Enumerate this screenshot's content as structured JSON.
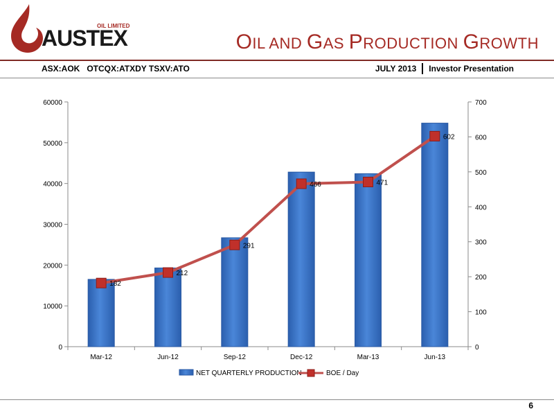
{
  "header": {
    "logo": {
      "company": "AUSTEX",
      "sub": "OIL LIMITED"
    },
    "title_parts": [
      {
        "text": "O",
        "cls": "cap"
      },
      {
        "text": "IL AND ",
        "cls": "sc"
      },
      {
        "text": "G",
        "cls": "cap"
      },
      {
        "text": "AS ",
        "cls": "sc"
      },
      {
        "text": "P",
        "cls": "cap"
      },
      {
        "text": "RODUCTION ",
        "cls": "sc"
      },
      {
        "text": "G",
        "cls": "cap"
      },
      {
        "text": "ROWTH",
        "cls": "sc"
      }
    ],
    "tickers": "ASX:AOK   OTCQX:ATXDY TSXV:ATO",
    "date": "JULY 2013",
    "presentation": "Investor Presentation"
  },
  "colors": {
    "title": "#a52a24",
    "bar": "#3f79cf",
    "bar_edge": "#2a5aa4",
    "line": "#c0504d",
    "marker": "#c0302a"
  },
  "chart_data": {
    "type": "bar",
    "categories": [
      "Mar-12",
      "Jun-12",
      "Sep-12",
      "Dec-12",
      "Mar-13",
      "Jun-13"
    ],
    "series": [
      {
        "name": "NET QUARTERLY PRODUCTION",
        "type": "bar",
        "axis": "left",
        "values": [
          16500,
          19300,
          26700,
          42800,
          42400,
          54800
        ]
      },
      {
        "name": "BOE / Day",
        "type": "line",
        "axis": "right",
        "values": [
          182,
          212,
          291,
          466,
          471,
          602
        ],
        "labels": [
          "182",
          "212",
          "291",
          "466",
          "471",
          "602"
        ]
      }
    ],
    "y_left": {
      "min": 0,
      "max": 60000,
      "ticks": [
        0,
        10000,
        20000,
        30000,
        40000,
        50000,
        60000
      ]
    },
    "y_right": {
      "min": 0,
      "max": 700,
      "ticks": [
        0,
        100,
        200,
        300,
        400,
        500,
        600,
        700
      ]
    },
    "grid": false,
    "legend": "bottom"
  },
  "footer": {
    "page": "6"
  }
}
